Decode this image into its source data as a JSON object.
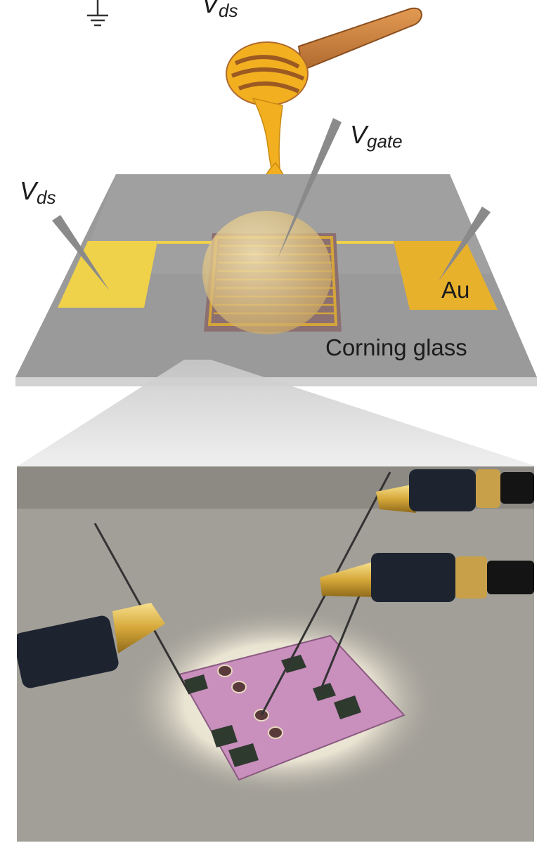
{
  "labels": {
    "vds_top": {
      "main": "V",
      "sub": "ds"
    },
    "vgate": {
      "main": "V",
      "sub": "gate"
    },
    "vds_left": {
      "main": "V",
      "sub": "ds"
    },
    "au": "Au",
    "corning_glass": "Corning glass"
  },
  "icons": [
    "ground-icon",
    "honey-dipper-icon",
    "honey-drop-icon",
    "probe-needle-icon",
    "probe-holder-icon"
  ],
  "colors": {
    "glass": "#9a9a9a",
    "gold_electrode": "#f0d24a",
    "gold_electrode_right": "#e7b12c",
    "honey": "#f2b020",
    "dipper_wood": "#c97d3c",
    "photo_substrate": "#c98fbd"
  }
}
